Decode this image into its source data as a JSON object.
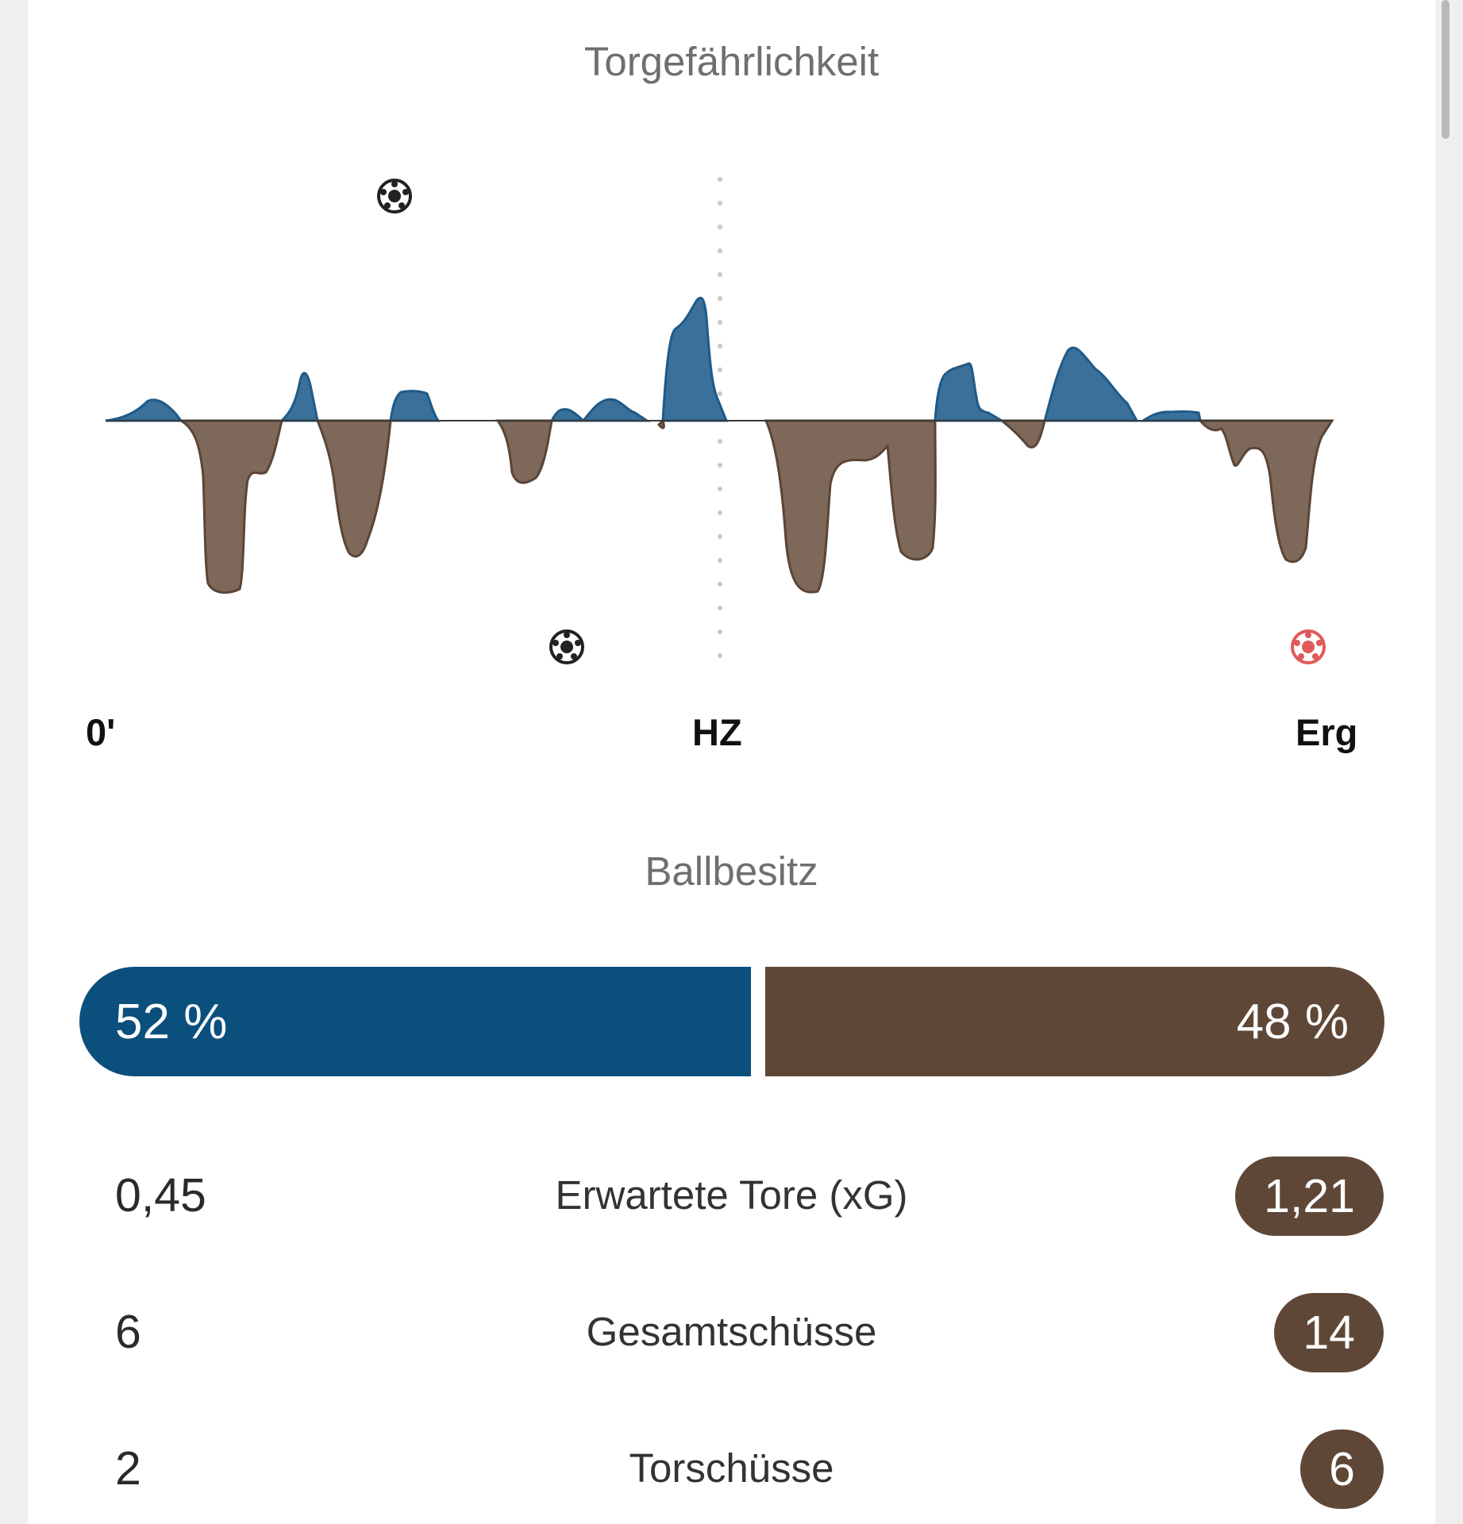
{
  "momentum": {
    "title": "Torgefährlichkeit",
    "timeline": {
      "start": "0'",
      "half": "HZ",
      "end": "Erg"
    },
    "colors": {
      "home": "#3a7099",
      "away": "#7d6859",
      "away_outline": "#5a4537",
      "home_outline": "#1f5a88",
      "own_goal": "#e05a5a"
    },
    "goals": [
      {
        "team": "home",
        "icon": "soccer-ball-icon"
      },
      {
        "team": "away",
        "icon": "soccer-ball-icon"
      },
      {
        "team": "away",
        "icon": "soccer-ball-icon",
        "own_goal_color": true
      }
    ]
  },
  "possession": {
    "title": "Ballbesitz",
    "home_label": "52 %",
    "away_label": "48 %",
    "home_value": 52,
    "away_value": 48,
    "colors": {
      "home": "#0b4f7d",
      "away": "#5f4737"
    }
  },
  "stats": [
    {
      "home": "0,45",
      "label": "Erwartete Tore (xG)",
      "away": "1,21"
    },
    {
      "home": "6",
      "label": "Gesamtschüsse",
      "away": "14"
    },
    {
      "home": "2",
      "label": "Torschüsse",
      "away": "6"
    }
  ]
}
